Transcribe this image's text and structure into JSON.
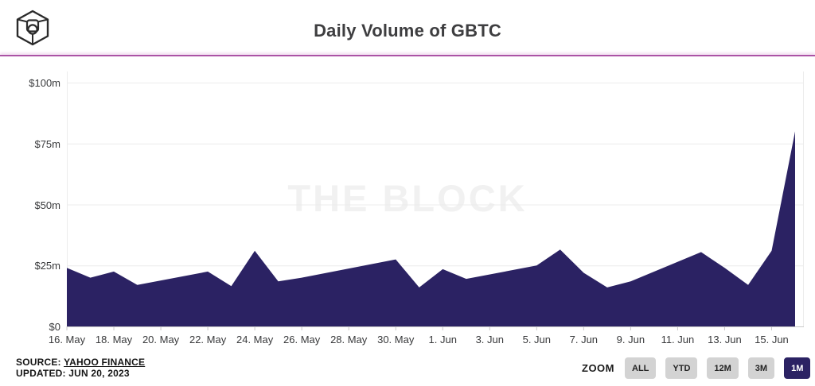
{
  "header": {
    "title": "Daily Volume of GBTC",
    "logo_icon": "the-block-cube-logo",
    "divider_color": "#ab53a5"
  },
  "watermark": "THE BLOCK",
  "chart_data": {
    "type": "area",
    "title": "Daily Volume of GBTC",
    "unit": "USD millions per day",
    "fill_color": "#2b2263",
    "grid": "on",
    "ylim": [
      0,
      100
    ],
    "x_axis_days_total": 31,
    "yticks": [
      {
        "label": "$0",
        "value": 0
      },
      {
        "label": "$25m",
        "value": 25
      },
      {
        "label": "$50m",
        "value": 50
      },
      {
        "label": "$75m",
        "value": 75
      },
      {
        "label": "$100m",
        "value": 100
      }
    ],
    "xticks": [
      {
        "label": "16. May",
        "day": 0
      },
      {
        "label": "18. May",
        "day": 2
      },
      {
        "label": "20. May",
        "day": 4
      },
      {
        "label": "22. May",
        "day": 6
      },
      {
        "label": "24. May",
        "day": 8
      },
      {
        "label": "26. May",
        "day": 10
      },
      {
        "label": "28. May",
        "day": 12
      },
      {
        "label": "30. May",
        "day": 14
      },
      {
        "label": "1. Jun",
        "day": 16
      },
      {
        "label": "3. Jun",
        "day": 18
      },
      {
        "label": "5. Jun",
        "day": 20
      },
      {
        "label": "7. Jun",
        "day": 22
      },
      {
        "label": "9. Jun",
        "day": 24
      },
      {
        "label": "11. Jun",
        "day": 26
      },
      {
        "label": "13. Jun",
        "day": 28
      },
      {
        "label": "15. Jun",
        "day": 30
      }
    ],
    "points": [
      {
        "date": "16. May",
        "day": 0,
        "value": 24
      },
      {
        "date": "17. May",
        "day": 1,
        "value": 20
      },
      {
        "date": "18. May",
        "day": 2,
        "value": 22.5
      },
      {
        "date": "19. May",
        "day": 3,
        "value": 17
      },
      {
        "date": "22. May",
        "day": 6,
        "value": 22.5
      },
      {
        "date": "23. May",
        "day": 7,
        "value": 16.5
      },
      {
        "date": "24. May",
        "day": 8,
        "value": 31
      },
      {
        "date": "25. May",
        "day": 9,
        "value": 18.5
      },
      {
        "date": "26. May",
        "day": 10,
        "value": 20
      },
      {
        "date": "30. May",
        "day": 14,
        "value": 27.5
      },
      {
        "date": "31. May",
        "day": 15,
        "value": 16
      },
      {
        "date": "1. Jun",
        "day": 16,
        "value": 23.5
      },
      {
        "date": "2. Jun",
        "day": 17,
        "value": 19.5
      },
      {
        "date": "5. Jun",
        "day": 20,
        "value": 25
      },
      {
        "date": "6. Jun",
        "day": 21,
        "value": 31.5
      },
      {
        "date": "7. Jun",
        "day": 22,
        "value": 22
      },
      {
        "date": "8. Jun",
        "day": 23,
        "value": 16
      },
      {
        "date": "9. Jun",
        "day": 24,
        "value": 18.5
      },
      {
        "date": "12. Jun",
        "day": 27,
        "value": 30.5
      },
      {
        "date": "13. Jun",
        "day": 28,
        "value": 24
      },
      {
        "date": "14. Jun",
        "day": 29,
        "value": 17
      },
      {
        "date": "15. Jun",
        "day": 30,
        "value": 31
      },
      {
        "date": "16. Jun",
        "day": 31,
        "value": 80
      }
    ]
  },
  "footer": {
    "source_label": "SOURCE:",
    "source_value": "YAHOO FINANCE",
    "updated": "UPDATED: JUN 20, 2023",
    "zoom_label": "ZOOM",
    "active_button_bg": "#2b2263",
    "zoom_buttons": [
      {
        "label": "ALL",
        "active": false
      },
      {
        "label": "YTD",
        "active": false
      },
      {
        "label": "12M",
        "active": false
      },
      {
        "label": "3M",
        "active": false
      },
      {
        "label": "1M",
        "active": true
      }
    ]
  }
}
